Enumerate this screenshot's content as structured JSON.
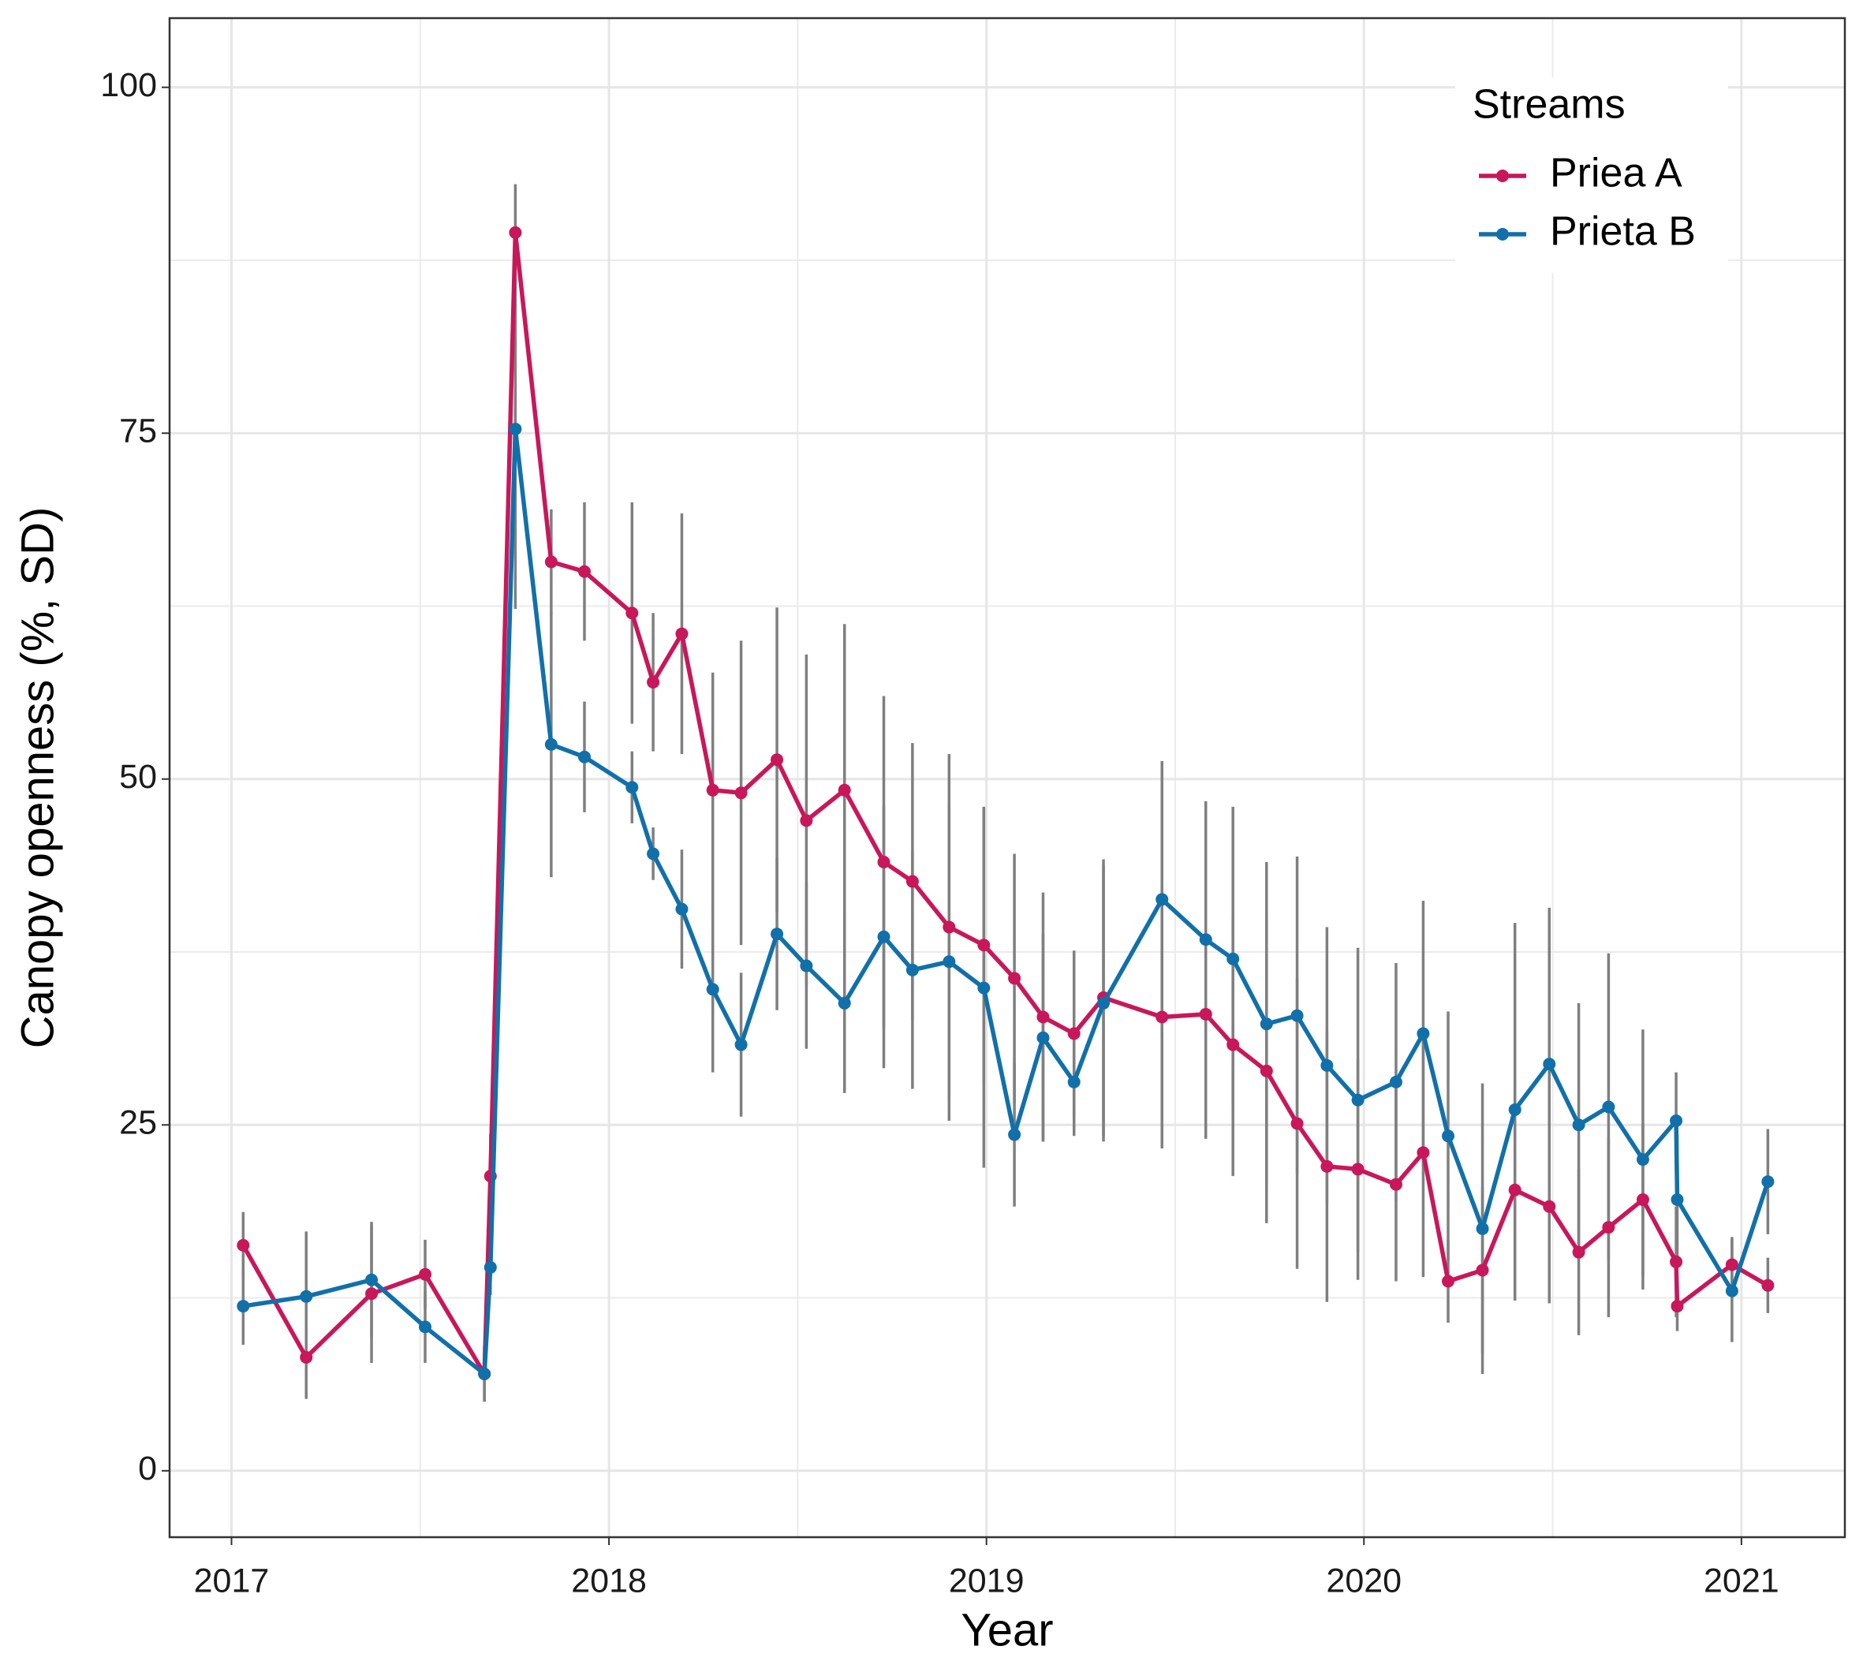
{
  "chart_data": {
    "type": "line",
    "x_label": "Year",
    "y_label": "Canopy openness (%, SD)",
    "x": [
      2017.031,
      2017.198,
      2017.371,
      2017.513,
      2017.67,
      2017.686,
      2017.752,
      2017.847,
      2017.935,
      2018.061,
      2018.117,
      2018.193,
      2018.275,
      2018.35,
      2018.445,
      2018.523,
      2018.624,
      2018.728,
      2018.804,
      2018.901,
      2018.993,
      2019.074,
      2019.15,
      2019.232,
      2019.31,
      2019.465,
      2019.581,
      2019.653,
      2019.742,
      2019.823,
      2019.902,
      2019.984,
      2020.085,
      2020.157,
      2020.223,
      2020.314,
      2020.4,
      2020.491,
      2020.569,
      2020.648,
      2020.739,
      2020.827,
      2020.83,
      2020.975,
      2021.07
    ],
    "series": [
      {
        "name": "Priea A",
        "color": "#c8175a",
        "values": [
          16.3,
          8.2,
          12.8,
          14.2,
          7,
          21.3,
          89.5,
          65.7,
          65,
          62,
          57,
          60.5,
          49.2,
          49,
          51.4,
          47,
          49.2,
          44,
          42.6,
          39.3,
          38,
          35.6,
          32.8,
          31.6,
          34.2,
          32.8,
          33,
          30.8,
          28.9,
          25.1,
          22,
          21.8,
          20.7,
          23,
          13.7,
          14.5,
          20.3,
          19.1,
          15.8,
          17.6,
          19.6,
          15.1,
          11.9,
          14.9,
          13.4
        ],
        "sd": [
          2.4,
          3,
          5,
          2.5,
          2,
          3,
          3.5,
          3.8,
          5,
          8,
          5,
          8.7,
          8.5,
          11,
          11,
          12,
          12,
          12,
          10,
          12.5,
          10,
          9,
          9,
          6,
          10,
          9.5,
          9,
          9.5,
          11,
          10.5,
          9.8,
          8,
          7,
          9,
          3,
          6,
          8,
          7,
          6,
          6.5,
          5.5,
          4,
          1.8,
          2,
          2
        ]
      },
      {
        "name": "Prieta B",
        "color": "#1170aa",
        "values": [
          11.9,
          12.6,
          13.8,
          10.4,
          7,
          14.7,
          75.3,
          52.5,
          51.6,
          49.4,
          44.6,
          40.6,
          34.8,
          30.8,
          38.8,
          36.5,
          33.8,
          38.6,
          36.2,
          36.8,
          34.9,
          24.3,
          31.3,
          28.1,
          33.8,
          41.3,
          38.4,
          37,
          32.3,
          32.9,
          29.3,
          26.8,
          28.1,
          31.6,
          24.2,
          17.5,
          26.1,
          29.4,
          25,
          26.3,
          22.5,
          25.3,
          19.6,
          13,
          20.9
        ],
        "sd": [
          2.8,
          4.7,
          4.2,
          2.6,
          2,
          2,
          13,
          9.6,
          4,
          2.6,
          1.9,
          4.3,
          6,
          5.2,
          5.5,
          6,
          6.5,
          9.5,
          8.6,
          11.5,
          13,
          5.2,
          7.5,
          3.9,
          10,
          10,
          10,
          11,
          11.7,
          11.5,
          10,
          11,
          8.6,
          9.6,
          9,
          10.5,
          13.5,
          11.3,
          8.8,
          11.1,
          9.4,
          3.5,
          4.7,
          3.7,
          3.8
        ]
      }
    ],
    "errorbar_color": "#7f7f7f",
    "xlim": [
      2016.836,
      2021.274
    ],
    "xticks": [
      2017,
      2018,
      2019,
      2020,
      2021
    ],
    "minor_xticks": [
      2017.5,
      2018.5,
      2019.5,
      2020.5
    ],
    "ylim": [
      -4.8,
      105
    ],
    "yticks": [
      0,
      25,
      50,
      75,
      100
    ],
    "minor_yticks": [
      12.5,
      37.5,
      62.5,
      87.5
    ],
    "grid": true,
    "legend": {
      "title": "Streams",
      "position": "top-right"
    }
  }
}
